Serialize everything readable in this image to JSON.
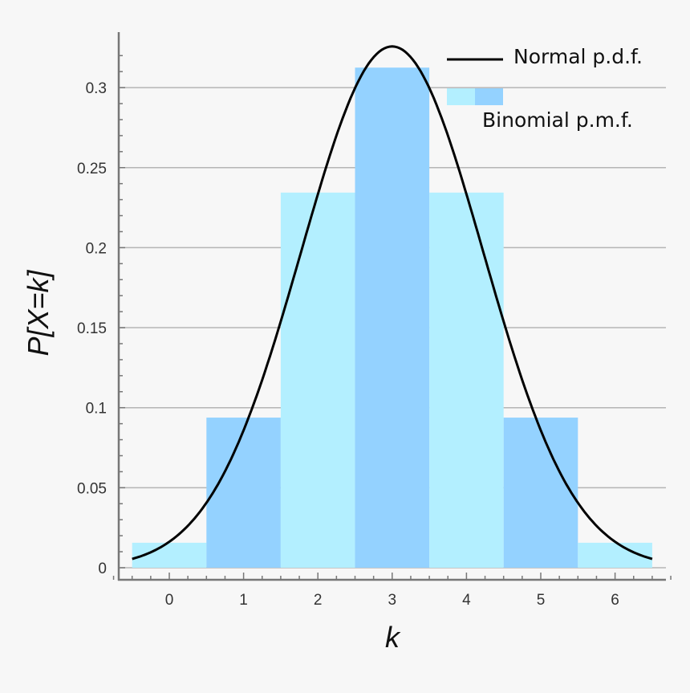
{
  "chart_data": {
    "type": "bar",
    "title": "",
    "xlabel": "k",
    "ylabel": "P[X=k]",
    "categories": [
      "0",
      "1",
      "2",
      "3",
      "4",
      "5",
      "6"
    ],
    "x": [
      0,
      1,
      2,
      3,
      4,
      5,
      6
    ],
    "series": [
      {
        "name": "Binomial p.m.f.",
        "type": "bar",
        "values": [
          0.0156,
          0.0938,
          0.2344,
          0.3125,
          0.2344,
          0.0938,
          0.0156
        ],
        "colors": [
          "#b3efff",
          "#94d2ff",
          "#b3efff",
          "#94d2ff",
          "#b3efff",
          "#94d2ff",
          "#b3efff"
        ]
      },
      {
        "name": "Normal p.d.f.",
        "type": "line",
        "mean": 3,
        "variance": 1.5,
        "x_range": [
          -0.5,
          6.5
        ],
        "peak": 0.3257,
        "color": "#000000"
      }
    ],
    "xlim": [
      -0.7,
      6.7
    ],
    "ylim": [
      0,
      0.33
    ],
    "yticks": [
      "0",
      "0.05",
      "0.1",
      "0.15",
      "0.2",
      "0.25",
      "0.3"
    ],
    "xticks": [
      "0",
      "1",
      "2",
      "3",
      "4",
      "5",
      "6"
    ],
    "grid": "horizontal",
    "legend": {
      "position": "top-right",
      "entries": [
        "Normal p.d.f.",
        "Binomial p.m.f."
      ]
    }
  },
  "legend": {
    "normal": "Normal p.d.f.",
    "binomial": "Binomial p.m.f."
  },
  "axes": {
    "xlabel": "k",
    "ylabel": "P[X=k]"
  }
}
